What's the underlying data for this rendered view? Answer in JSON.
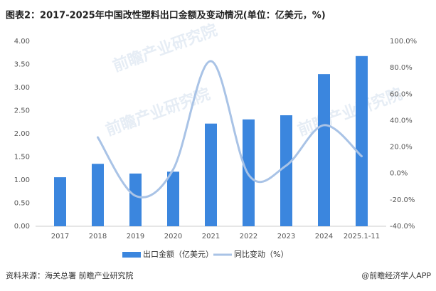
{
  "chart_data": {
    "type": "bar-line",
    "title": "图表2：2017-2025年中国改性塑料出口金额及变动情况(单位：亿美元，%)",
    "categories": [
      "2017",
      "2018",
      "2019",
      "2020",
      "2021",
      "2022",
      "2023",
      "2024",
      "2025.1-11"
    ],
    "series": [
      {
        "name": "出口金额（亿美元）",
        "type": "bar",
        "color": "#3b86de",
        "values": [
          1.06,
          1.35,
          1.14,
          1.18,
          2.22,
          2.31,
          2.4,
          3.29,
          3.68
        ]
      },
      {
        "name": "同比变动（%）",
        "type": "line",
        "axis": "y2",
        "color": "#a9c3e6",
        "values": [
          null,
          27.3,
          -17,
          3,
          85,
          -1,
          6,
          36.5,
          13
        ]
      }
    ],
    "ylim": [
      0,
      4
    ],
    "yticks": [
      {
        "value": 0,
        "label": "0.00"
      },
      {
        "value": 0.5,
        "label": "0.50"
      },
      {
        "value": 1,
        "label": "1.00"
      },
      {
        "value": 1.5,
        "label": "1.50"
      },
      {
        "value": 2,
        "label": "2.00"
      },
      {
        "value": 2.5,
        "label": "2.50"
      },
      {
        "value": 3,
        "label": "3.00"
      },
      {
        "value": 3.5,
        "label": "3.50"
      },
      {
        "value": 4,
        "label": "4.00"
      }
    ],
    "y2lim": [
      -40,
      100
    ],
    "y2ticks": [
      {
        "value": -40,
        "label": "-40.0%"
      },
      {
        "value": -20,
        "label": "-20.0%"
      },
      {
        "value": 0,
        "label": "0.0%"
      },
      {
        "value": 20,
        "label": "20.0%"
      },
      {
        "value": 40,
        "label": "40.0%"
      },
      {
        "value": 60,
        "label": "60.0%"
      },
      {
        "value": 80,
        "label": "80.0%"
      },
      {
        "value": 100,
        "label": "100.0%"
      }
    ],
    "watermark": "前瞻产业研究院",
    "source": "资料来源：海关总署 前瞻产业研究院",
    "credit": "@前瞻经济学人APP"
  }
}
